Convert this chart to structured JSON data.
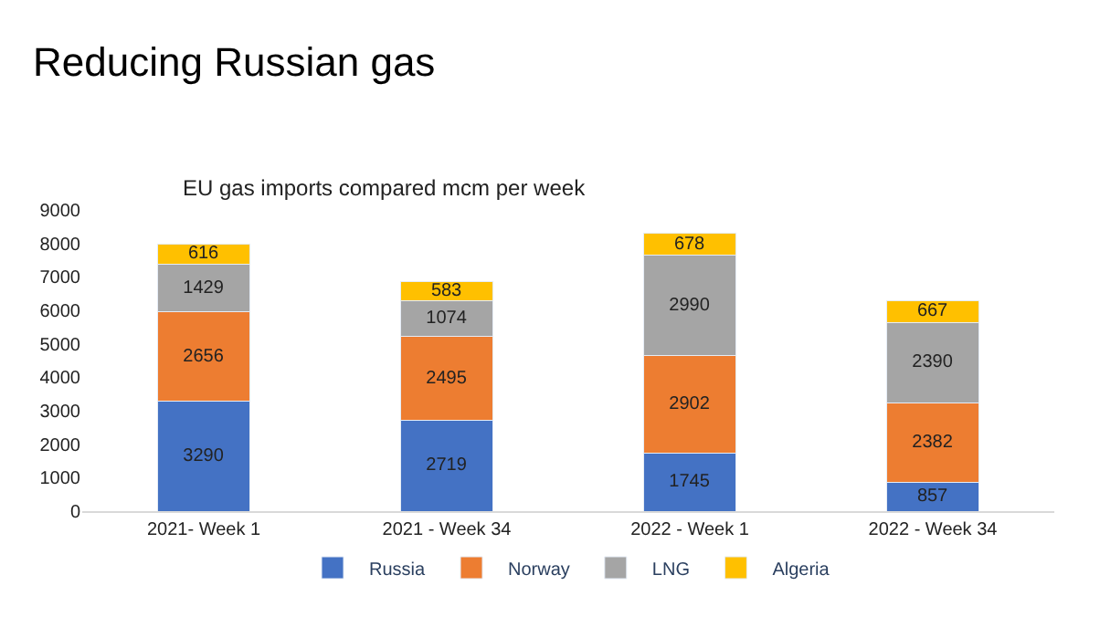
{
  "chart_data": {
    "type": "bar",
    "title": "Reducing Russian gas",
    "subtitle": "EU gas imports compared mcm per week",
    "categories": [
      "2021- Week 1",
      "2021 - Week 34",
      "2022 - Week 1",
      "2022 - Week 34"
    ],
    "series": [
      {
        "name": "Russia",
        "color": "#4472c4",
        "values": [
          3290,
          2719,
          1745,
          857
        ]
      },
      {
        "name": "Norway",
        "color": "#ed7d31",
        "values": [
          2656,
          2495,
          2902,
          2382
        ]
      },
      {
        "name": "LNG",
        "color": "#a5a5a5",
        "values": [
          1429,
          1074,
          2990,
          2390
        ]
      },
      {
        "name": "Algeria",
        "color": "#ffc000",
        "values": [
          616,
          583,
          678,
          667
        ]
      }
    ],
    "stacked": true,
    "data_labels": true,
    "ylim": [
      0,
      9000
    ],
    "yticks": [
      0,
      1000,
      2000,
      3000,
      4000,
      5000,
      6000,
      7000,
      8000,
      9000
    ],
    "legend": "bottom"
  }
}
